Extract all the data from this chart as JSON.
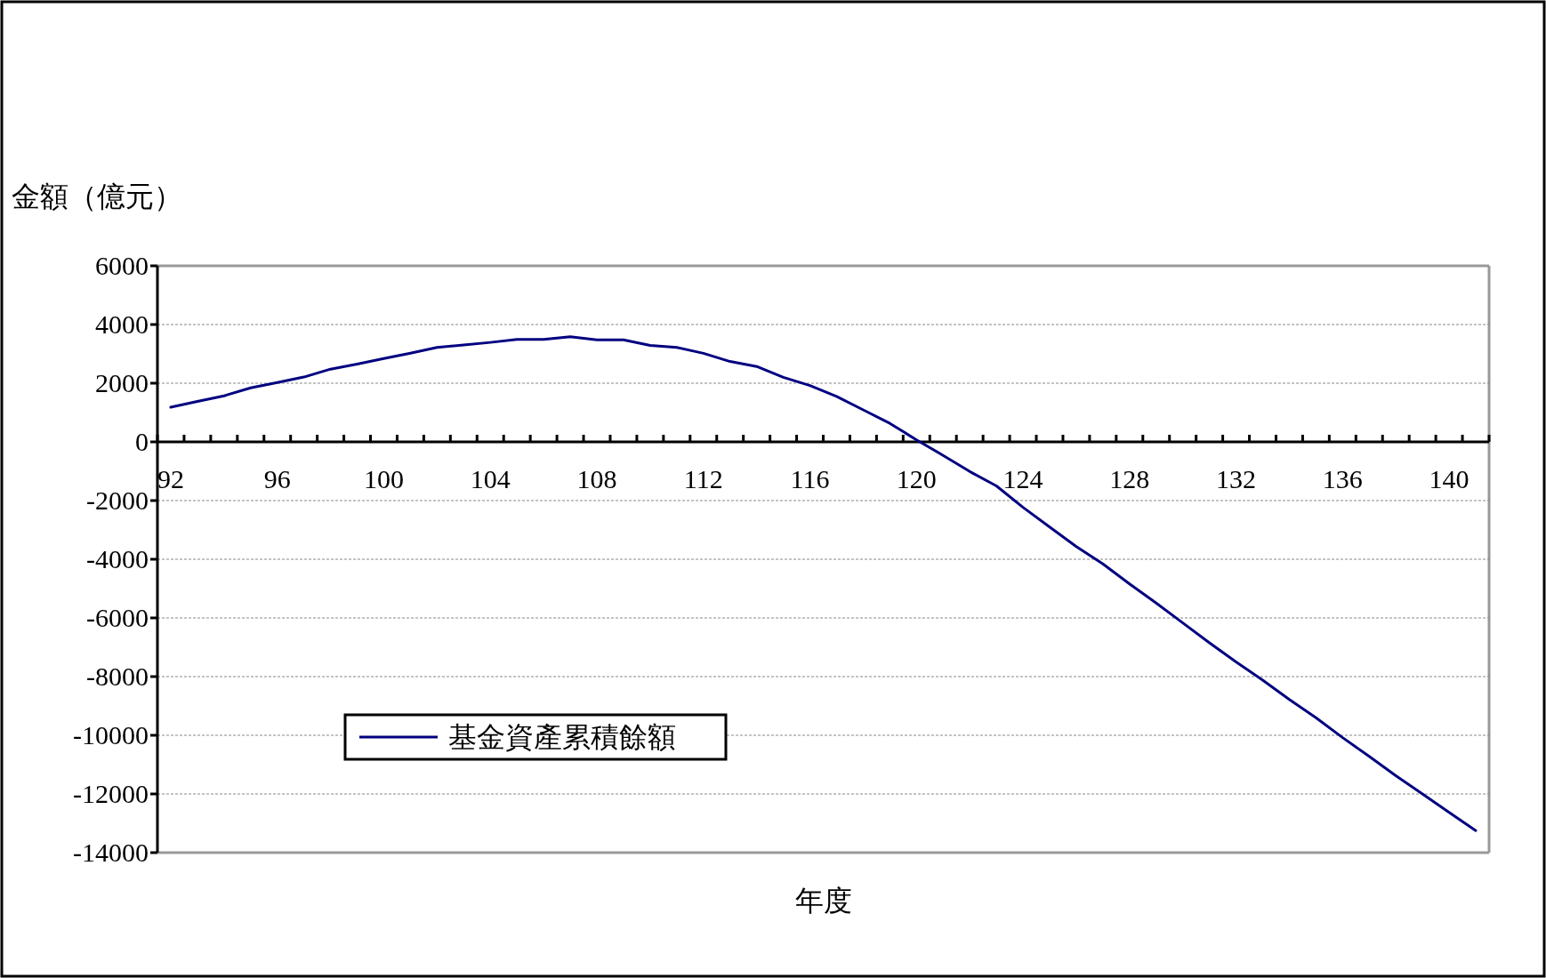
{
  "chart_data": {
    "type": "line",
    "xlabel": "年度",
    "ylabel": "金額（億元）",
    "categories": [
      "92",
      null,
      null,
      null,
      "96",
      null,
      null,
      null,
      "100",
      null,
      null,
      null,
      "104",
      null,
      null,
      null,
      "108",
      null,
      null,
      null,
      "112",
      null,
      null,
      null,
      "116",
      null,
      null,
      null,
      "120",
      null,
      null,
      null,
      "124",
      null,
      null,
      null,
      "128",
      null,
      null,
      null,
      "132",
      null,
      null,
      null,
      "136",
      null,
      null,
      null,
      "140",
      null
    ],
    "series": [
      {
        "name": "基金資產累積餘額",
        "color": "#000080",
        "values": [
          1180,
          1380,
          1570,
          1840,
          2020,
          2210,
          2480,
          2650,
          2840,
          3020,
          3220,
          3300,
          3390,
          3490,
          3490,
          3580,
          3480,
          3480,
          3290,
          3220,
          3020,
          2740,
          2570,
          2200,
          1920,
          1550,
          1090,
          630,
          70,
          -460,
          -1010,
          -1500,
          -2230,
          -2900,
          -3570,
          -4160,
          -4840,
          -5490,
          -6170,
          -6850,
          -7500,
          -8120,
          -8780,
          -9400,
          -10080,
          -10720,
          -11380,
          -12000,
          -12630,
          -13250
        ]
      }
    ],
    "ylim": [
      -14000,
      6000
    ],
    "yticks": [
      -14000,
      -12000,
      -10000,
      -8000,
      -6000,
      -4000,
      -2000,
      0,
      2000,
      4000,
      6000
    ],
    "grid": "y",
    "legend": "bottom left",
    "marker": "none",
    "line_style": "solid"
  }
}
